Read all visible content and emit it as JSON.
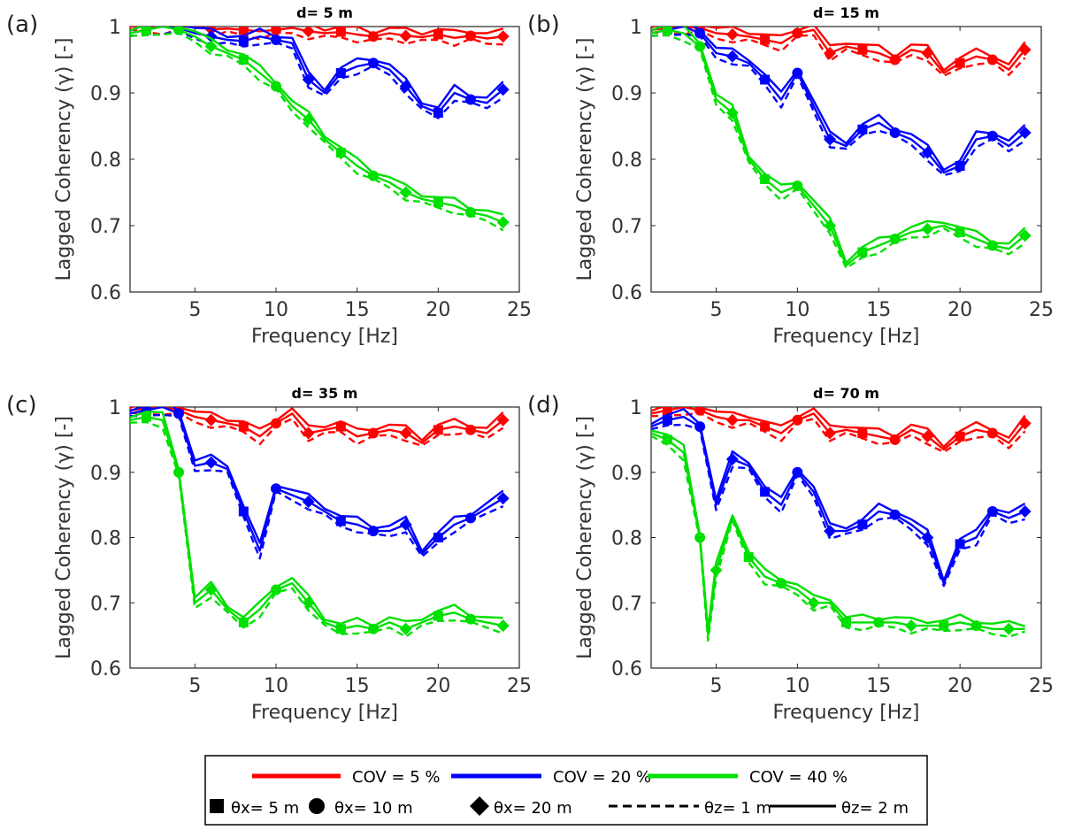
{
  "colors": {
    "cov5": "#ff0000",
    "cov20": "#0000ff",
    "cov40": "#00e000",
    "axis": "#262626"
  },
  "legend": {
    "row1": [
      {
        "color_key": "cov5",
        "label": "COV = 5 %"
      },
      {
        "color_key": "cov20",
        "label": "COV = 20 %"
      },
      {
        "color_key": "cov40",
        "label": "COV = 40 %"
      }
    ],
    "row2": [
      {
        "icon": "square-marker-icon",
        "label": "θx= 5 m"
      },
      {
        "icon": "circle-marker-icon",
        "label": "θx= 10 m"
      },
      {
        "icon": "diamond-marker-icon",
        "label": "θx= 20 m"
      },
      {
        "icon": "dashed-line-icon",
        "label": "θz= 1 m"
      },
      {
        "icon": "solid-line-icon",
        "label": "θz= 2 m"
      }
    ]
  },
  "chart_data": [
    {
      "type": "line",
      "panel": "(a)",
      "title": "d= 5 m",
      "xlabel": "Frequency [Hz]",
      "ylabel": "Lagged Coherency (γ) [-]",
      "xlim": [
        1,
        25
      ],
      "ylim": [
        0.6,
        1.0
      ],
      "xticks": [
        5,
        10,
        15,
        20,
        25
      ],
      "yticks": [
        0.6,
        0.7,
        0.8,
        0.9,
        1
      ],
      "series": [
        {
          "group": "cov5",
          "x": [
            1,
            2,
            3,
            4,
            5,
            6,
            7,
            8,
            9,
            10,
            11,
            12,
            13,
            14,
            15,
            16,
            17,
            18,
            19,
            20,
            21,
            22,
            23,
            24
          ],
          "y": [
            1.0,
            1.0,
            1.0,
            1.0,
            1.0,
            0.996,
            0.997,
            0.995,
            0.993,
            0.995,
            0.998,
            0.993,
            0.99,
            0.992,
            0.988,
            0.985,
            0.99,
            0.986,
            0.984,
            0.988,
            0.983,
            0.986,
            0.982,
            0.985
          ]
        },
        {
          "group": "cov20",
          "x": [
            1,
            2,
            3,
            4,
            5,
            6,
            7,
            8,
            9,
            10,
            11,
            12,
            13,
            14,
            15,
            16,
            17,
            18,
            19,
            20,
            21,
            22,
            23,
            24
          ],
          "y": [
            0.99,
            0.995,
            1.0,
            0.998,
            0.99,
            0.985,
            0.98,
            0.978,
            0.985,
            0.98,
            0.975,
            0.92,
            0.9,
            0.93,
            0.94,
            0.945,
            0.935,
            0.91,
            0.88,
            0.87,
            0.9,
            0.89,
            0.885,
            0.905
          ]
        },
        {
          "group": "cov40",
          "x": [
            1,
            2,
            3,
            4,
            5,
            6,
            7,
            8,
            9,
            10,
            11,
            12,
            13,
            14,
            15,
            16,
            17,
            18,
            19,
            20,
            21,
            22,
            23,
            24
          ],
          "y": [
            0.99,
            0.995,
            1.0,
            0.995,
            0.985,
            0.97,
            0.96,
            0.95,
            0.93,
            0.91,
            0.88,
            0.86,
            0.83,
            0.81,
            0.79,
            0.775,
            0.765,
            0.75,
            0.74,
            0.735,
            0.73,
            0.72,
            0.715,
            0.705
          ]
        }
      ]
    },
    {
      "type": "line",
      "panel": "(b)",
      "title": "d= 15 m",
      "xlabel": "Frequency [Hz]",
      "ylabel": "Lagged Coherency (γ) [-]",
      "xlim": [
        1,
        25
      ],
      "ylim": [
        0.6,
        1.0
      ],
      "xticks": [
        5,
        10,
        15,
        20,
        25
      ],
      "yticks": [
        0.6,
        0.7,
        0.8,
        0.9,
        1
      ],
      "series": [
        {
          "group": "cov5",
          "x": [
            1,
            2,
            3,
            4,
            5,
            6,
            7,
            8,
            9,
            10,
            11,
            12,
            13,
            14,
            15,
            16,
            17,
            18,
            19,
            20,
            21,
            22,
            23,
            24
          ],
          "y": [
            0.995,
            0.998,
            1.0,
            0.998,
            0.99,
            0.988,
            0.985,
            0.98,
            0.975,
            0.99,
            0.995,
            0.96,
            0.97,
            0.965,
            0.96,
            0.95,
            0.965,
            0.96,
            0.93,
            0.945,
            0.955,
            0.95,
            0.935,
            0.965
          ]
        },
        {
          "group": "cov20",
          "x": [
            1,
            2,
            3,
            4,
            5,
            6,
            7,
            8,
            9,
            10,
            11,
            12,
            13,
            14,
            15,
            16,
            17,
            18,
            19,
            20,
            21,
            22,
            23,
            24
          ],
          "y": [
            0.99,
            0.995,
            1.0,
            0.99,
            0.96,
            0.955,
            0.945,
            0.92,
            0.89,
            0.93,
            0.88,
            0.83,
            0.82,
            0.845,
            0.855,
            0.84,
            0.83,
            0.81,
            0.78,
            0.79,
            0.83,
            0.835,
            0.82,
            0.84
          ]
        },
        {
          "group": "cov40",
          "x": [
            1,
            2,
            3,
            4,
            5,
            6,
            7,
            8,
            9,
            10,
            11,
            12,
            13,
            14,
            15,
            16,
            17,
            18,
            19,
            20,
            21,
            22,
            23,
            24
          ],
          "y": [
            0.99,
            0.995,
            0.99,
            0.97,
            0.89,
            0.87,
            0.8,
            0.77,
            0.75,
            0.76,
            0.73,
            0.7,
            0.64,
            0.66,
            0.67,
            0.68,
            0.69,
            0.695,
            0.7,
            0.69,
            0.68,
            0.67,
            0.665,
            0.685
          ]
        }
      ]
    },
    {
      "type": "line",
      "panel": "(c)",
      "title": "d= 35 m",
      "xlabel": "Frequency [Hz]",
      "ylabel": "Lagged Coherency (γ) [-]",
      "xlim": [
        1,
        25
      ],
      "ylim": [
        0.6,
        1.0
      ],
      "xticks": [
        5,
        10,
        15,
        20,
        25
      ],
      "yticks": [
        0.6,
        0.7,
        0.8,
        0.9,
        1
      ],
      "series": [
        {
          "group": "cov5",
          "x": [
            1,
            2,
            3,
            4,
            5,
            6,
            7,
            8,
            9,
            10,
            11,
            12,
            13,
            14,
            15,
            16,
            17,
            18,
            19,
            20,
            21,
            22,
            23,
            24
          ],
          "y": [
            0.995,
            0.998,
            1.0,
            0.995,
            0.985,
            0.98,
            0.975,
            0.97,
            0.955,
            0.975,
            0.99,
            0.96,
            0.965,
            0.97,
            0.955,
            0.96,
            0.965,
            0.96,
            0.945,
            0.965,
            0.97,
            0.965,
            0.96,
            0.98
          ]
        },
        {
          "group": "cov20",
          "x": [
            1,
            2,
            3,
            4,
            5,
            6,
            7,
            8,
            9,
            10,
            11,
            12,
            13,
            14,
            15,
            16,
            17,
            18,
            19,
            20,
            21,
            22,
            23,
            24
          ],
          "y": [
            0.99,
            0.995,
            1.0,
            0.99,
            0.91,
            0.915,
            0.905,
            0.84,
            0.78,
            0.875,
            0.865,
            0.855,
            0.84,
            0.825,
            0.82,
            0.81,
            0.81,
            0.82,
            0.775,
            0.8,
            0.82,
            0.83,
            0.845,
            0.86
          ]
        },
        {
          "group": "cov40",
          "x": [
            1,
            2,
            3,
            4,
            5,
            6,
            7,
            8,
            9,
            10,
            11,
            12,
            13,
            14,
            15,
            16,
            17,
            18,
            19,
            20,
            21,
            22,
            23,
            24
          ],
          "y": [
            0.98,
            0.985,
            0.98,
            0.9,
            0.7,
            0.72,
            0.69,
            0.67,
            0.69,
            0.72,
            0.73,
            0.7,
            0.67,
            0.66,
            0.665,
            0.66,
            0.67,
            0.66,
            0.67,
            0.68,
            0.685,
            0.675,
            0.67,
            0.665
          ]
        }
      ]
    },
    {
      "type": "line",
      "panel": "(d)",
      "title": "d= 70 m",
      "xlabel": "Frequency [Hz]",
      "ylabel": "Lagged Coherency (γ) [-]",
      "xlim": [
        1,
        25
      ],
      "ylim": [
        0.6,
        1.0
      ],
      "xticks": [
        5,
        10,
        15,
        20,
        25
      ],
      "yticks": [
        0.6,
        0.7,
        0.8,
        0.9,
        1
      ],
      "series": [
        {
          "group": "cov5",
          "x": [
            1,
            2,
            3,
            4,
            5,
            6,
            7,
            8,
            9,
            10,
            11,
            12,
            13,
            14,
            15,
            16,
            17,
            18,
            19,
            20,
            21,
            22,
            23,
            24
          ],
          "y": [
            0.99,
            0.995,
            1.0,
            0.995,
            0.985,
            0.98,
            0.98,
            0.97,
            0.96,
            0.98,
            0.99,
            0.96,
            0.965,
            0.96,
            0.955,
            0.95,
            0.965,
            0.955,
            0.935,
            0.955,
            0.965,
            0.96,
            0.945,
            0.975
          ]
        },
        {
          "group": "cov20",
          "x": [
            1,
            2,
            3,
            4,
            5,
            6,
            7,
            8,
            9,
            10,
            11,
            12,
            13,
            14,
            15,
            16,
            17,
            18,
            19,
            20,
            21,
            22,
            23,
            24
          ],
          "y": [
            0.97,
            0.98,
            0.985,
            0.97,
            0.85,
            0.92,
            0.91,
            0.87,
            0.85,
            0.9,
            0.87,
            0.81,
            0.81,
            0.82,
            0.84,
            0.835,
            0.82,
            0.8,
            0.73,
            0.79,
            0.8,
            0.84,
            0.83,
            0.84
          ]
        },
        {
          "group": "cov40",
          "x": [
            1,
            2,
            3,
            4,
            4.5,
            5,
            6,
            7,
            8,
            9,
            10,
            11,
            12,
            13,
            14,
            15,
            16,
            17,
            18,
            19,
            20,
            21,
            22,
            23,
            24
          ],
          "y": [
            0.96,
            0.95,
            0.93,
            0.8,
            0.65,
            0.75,
            0.83,
            0.77,
            0.74,
            0.73,
            0.72,
            0.7,
            0.7,
            0.67,
            0.67,
            0.67,
            0.67,
            0.665,
            0.665,
            0.665,
            0.67,
            0.665,
            0.66,
            0.66,
            0.66
          ]
        }
      ]
    }
  ]
}
